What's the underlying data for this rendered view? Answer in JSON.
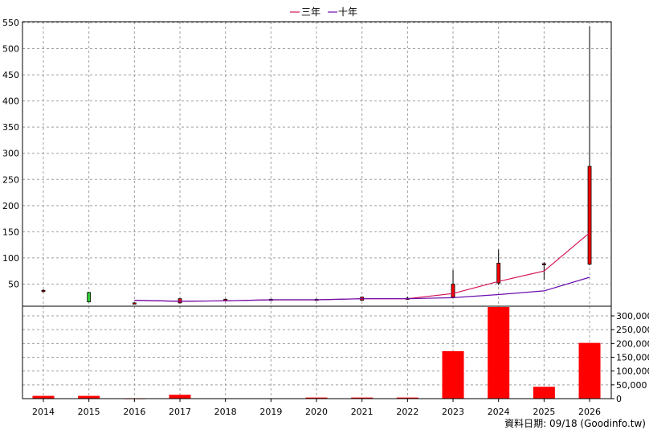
{
  "chart_data": {
    "type": "candlestick-line-bar",
    "legend": [
      {
        "name": "三年",
        "color": "#d4145a"
      },
      {
        "name": "十年",
        "color": "#6a0dad"
      }
    ],
    "x_categories": [
      "2014",
      "2015",
      "2016",
      "2017",
      "2018",
      "2019",
      "2020",
      "2021",
      "2022",
      "2023",
      "2024",
      "2025",
      "2026"
    ],
    "price_axis": {
      "ticks": [
        "550",
        "500",
        "450",
        "400",
        "350",
        "300",
        "250",
        "200",
        "150",
        "100",
        "50"
      ],
      "ylim": [
        0,
        550
      ]
    },
    "volume_axis": {
      "ticks": [
        "300,000",
        "250,000",
        "200,000",
        "150,000",
        "100,000",
        "50,000",
        "0"
      ],
      "ylim": [
        0,
        330000
      ]
    },
    "candles": [
      {
        "year": "2014",
        "open": 36,
        "close": 38,
        "high": 40,
        "low": 34,
        "color": "#ff0000"
      },
      {
        "year": "2015",
        "open": 34,
        "close": 16,
        "high": 35,
        "low": 15,
        "color": "#33cc33"
      },
      {
        "year": "2016",
        "open": 13,
        "close": 14,
        "high": 15,
        "low": 12,
        "color": "#ff0000"
      },
      {
        "year": "2017",
        "open": 14,
        "close": 22,
        "high": 23,
        "low": 13,
        "color": "#ff0000"
      },
      {
        "year": "2018",
        "open": 19,
        "close": 21,
        "high": 22,
        "low": 18,
        "color": "#ff0000"
      },
      {
        "year": "2019",
        "open": 19,
        "close": 21,
        "high": 22,
        "low": 18,
        "color": "#ff0000"
      },
      {
        "year": "2020",
        "open": 19,
        "close": 21,
        "high": 22,
        "low": 18,
        "color": "#ff0000"
      },
      {
        "year": "2021",
        "open": 19,
        "close": 25,
        "high": 26,
        "low": 18,
        "color": "#ff0000"
      },
      {
        "year": "2022",
        "open": 21,
        "close": 23,
        "high": 26,
        "low": 20,
        "color": "#ff0000"
      },
      {
        "year": "2023",
        "open": 25,
        "close": 50,
        "high": 77,
        "low": 24,
        "color": "#ff0000"
      },
      {
        "year": "2024",
        "open": 52,
        "close": 90,
        "high": 116,
        "low": 48,
        "color": "#ff0000"
      },
      {
        "year": "2025",
        "open": 87,
        "close": 89,
        "high": 92,
        "low": 58,
        "color": "#ff0000"
      },
      {
        "year": "2026",
        "open": 88,
        "close": 275,
        "high": 543,
        "low": 86,
        "color": "#ff0000"
      }
    ],
    "series": [
      {
        "name": "三年",
        "color": "#d4145a",
        "x": [
          "2016",
          "2017",
          "2018",
          "2019",
          "2020",
          "2021",
          "2022",
          "2023",
          "2024",
          "2025",
          "2026"
        ],
        "values": [
          19,
          17,
          18,
          20,
          20,
          22,
          22,
          32,
          55,
          75,
          148
        ]
      },
      {
        "name": "十年",
        "color": "#6a0dad",
        "x": [
          "2016",
          "2017",
          "2018",
          "2019",
          "2020",
          "2021",
          "2022",
          "2023",
          "2024",
          "2025",
          "2026"
        ],
        "values": [
          19,
          17,
          18,
          20,
          20,
          22,
          22,
          24,
          30,
          37,
          63
        ]
      }
    ],
    "volume": {
      "x": [
        "2014",
        "2015",
        "2016",
        "2017",
        "2018",
        "2019",
        "2020",
        "2021",
        "2022",
        "2023",
        "2024",
        "2025",
        "2026"
      ],
      "values": [
        10000,
        10000,
        1000,
        14000,
        1500,
        1500,
        4000,
        4000,
        4000,
        172000,
        332000,
        43000,
        202000
      ],
      "color": "#ff0000"
    }
  },
  "footer": {
    "date_label": "資料日期: 09/18  (Goodinfo.tw)"
  }
}
